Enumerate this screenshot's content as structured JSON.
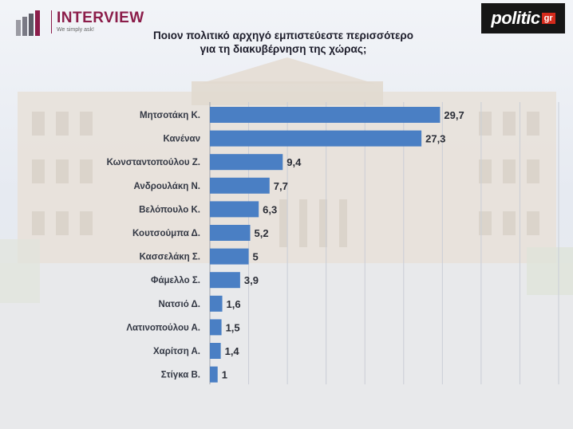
{
  "header": {
    "brand_name": "INTERVIEW",
    "brand_tagline": "We simply ask!",
    "partner_name": "politic",
    "partner_suffix": "gr"
  },
  "colors": {
    "bar": "#4a7fc4",
    "brand": "#8b1d4a",
    "partner_bg": "#161616",
    "partner_accent": "#d42a1c"
  },
  "chart_data": {
    "type": "bar",
    "orientation": "horizontal",
    "title": "Ποιον πολιτικό αρχηγό εμπιστεύεστε περισσότερο για τη διακυβέρνηση της χώρας;",
    "title_line1": "Ποιον πολιτικό αρχηγό εμπιστεύεστε περισσότερο",
    "title_line2": "για τη διακυβέρνηση της χώρας;",
    "categories": [
      "Μητσοτάκη Κ.",
      "Κανέναν",
      "Κωνσταντοπούλου Ζ.",
      "Ανδρουλάκη Ν.",
      "Βελόπουλο Κ.",
      "Κουτσούμπα Δ.",
      "Κασσελάκη Σ.",
      "Φάμελλο Σ.",
      "Νατσιό Δ.",
      "Λατινοπούλου Α.",
      "Χαρίτση Α.",
      "Στίγκα Β."
    ],
    "values": [
      29.7,
      27.3,
      9.4,
      7.7,
      6.3,
      5.2,
      5,
      3.9,
      1.6,
      1.5,
      1.4,
      1
    ],
    "value_labels": [
      "29,7",
      "27,3",
      "9,4",
      "7,7",
      "6,3",
      "5,2",
      "5",
      "3,9",
      "1,6",
      "1,5",
      "1,4",
      "1"
    ],
    "xlim": [
      0,
      45
    ],
    "grid": true,
    "legend": "none"
  }
}
